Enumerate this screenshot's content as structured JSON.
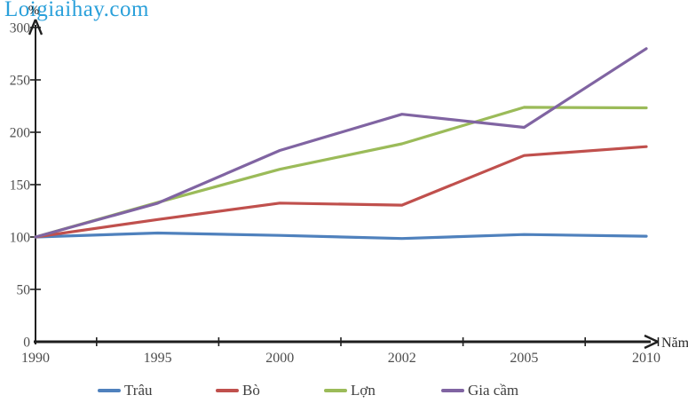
{
  "watermark": "Loigiaihay.com",
  "colors": {
    "watermark": "#2AA0DA",
    "axis": "#1f1f1f",
    "tick_label": "#4d4d4d"
  },
  "chart_data": {
    "type": "line",
    "categories": [
      "1990",
      "1995",
      "2000",
      "2002",
      "2005",
      "2010"
    ],
    "series": [
      {
        "name": "Trâu",
        "color": "#4F81BD",
        "values": [
          100,
          103.8,
          101.5,
          98.6,
          102.4,
          100.8
        ]
      },
      {
        "name": "Bò",
        "color": "#C0504D",
        "values": [
          100,
          116.7,
          132.4,
          130.4,
          177.8,
          186.3
        ]
      },
      {
        "name": "Lợn",
        "color": "#9BBB59",
        "values": [
          100,
          133.0,
          164.7,
          189.0,
          223.8,
          223.3
        ]
      },
      {
        "name": "Gia cầm",
        "color": "#8064A2",
        "values": [
          100,
          132.3,
          182.6,
          217.2,
          204.7,
          279.8
        ]
      }
    ],
    "xlabel": "Năm",
    "ylabel": "%",
    "ylim": [
      0,
      300
    ],
    "yticks": [
      0,
      50,
      100,
      150,
      200,
      250,
      300
    ],
    "grid": false,
    "legend_position": "bottom"
  }
}
